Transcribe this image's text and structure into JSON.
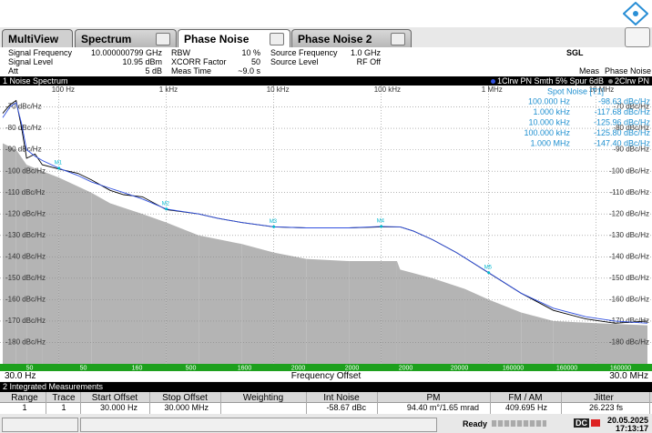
{
  "tabs": [
    "MultiView",
    "Spectrum",
    "Phase Noise",
    "Phase Noise 2"
  ],
  "info": {
    "signal_frequency": [
      "Signal Frequency",
      "10.000000799 GHz"
    ],
    "signal_level": [
      "Signal Level",
      "10.95 dBm"
    ],
    "att": [
      "Att",
      "5 dB"
    ],
    "rbw": [
      "RBW",
      "10 %"
    ],
    "xcorr": [
      "XCORR Factor",
      "50"
    ],
    "meas_time": [
      "Meas Time",
      "~9.0 s"
    ],
    "source_frequency": [
      "Source Frequency",
      "1.0 GHz"
    ],
    "source_level": [
      "Source Level",
      "RF Off"
    ],
    "mode": "SGL",
    "meas": [
      "Meas",
      "Phase Noise"
    ]
  },
  "plot": {
    "type": "line",
    "title": "1 Noise Spectrum",
    "trace_info": [
      "1Clrw PN Smth 5% Spur 6dB",
      "2Clrw PN"
    ],
    "log_x": true,
    "grid": true,
    "xlim": [
      30,
      30000000
    ],
    "ylim": [
      -190,
      -60
    ],
    "xticks": [
      {
        "value": 100,
        "label": "100 Hz"
      },
      {
        "value": 1000,
        "label": "1 kHz"
      },
      {
        "value": 10000,
        "label": "10 kHz"
      },
      {
        "value": 100000,
        "label": "100 kHz"
      },
      {
        "value": 1000000,
        "label": "1 MHz"
      },
      {
        "value": 10000000,
        "label": "10 MHz"
      }
    ],
    "yticks": [
      {
        "value": -70,
        "label": "-70 dBc/Hz"
      },
      {
        "value": -80,
        "label": "-80 dBc/Hz"
      },
      {
        "value": -90,
        "label": "-90 dBc/Hz"
      },
      {
        "value": -100,
        "label": "-100 dBc/Hz"
      },
      {
        "value": -110,
        "label": "-110 dBc/Hz"
      },
      {
        "value": -120,
        "label": "-120 dBc/Hz"
      },
      {
        "value": -130,
        "label": "-130 dBc/Hz"
      },
      {
        "value": -140,
        "label": "-140 dBc/Hz"
      },
      {
        "value": -150,
        "label": "-150 dBc/Hz"
      },
      {
        "value": -160,
        "label": "-160 dBc/Hz"
      },
      {
        "value": -170,
        "label": "-170 dBc/Hz"
      },
      {
        "value": -180,
        "label": "-180 dBc/Hz"
      }
    ],
    "x_start_label": "30.0 Hz",
    "x_label": "Frequency Offset",
    "x_end_label": "30.0 MHz",
    "area": {
      "color": "#b4b4b4",
      "x": [
        30,
        40,
        50,
        70,
        100,
        200,
        300,
        600,
        1000,
        2000,
        5000,
        10000,
        20000,
        50000,
        100000,
        140000,
        150000,
        300000,
        600000,
        1000000,
        2000000,
        4000000,
        10000000,
        30000000
      ],
      "values": [
        -87,
        -90,
        -97,
        -100,
        -103,
        -110,
        -115,
        -120,
        -124,
        -130,
        -134,
        -138,
        -141,
        -142,
        -142,
        -142,
        -146,
        -150,
        -155,
        -160,
        -166,
        -170,
        -171,
        -172
      ]
    },
    "series": [
      {
        "color": "#000000",
        "x": [
          30,
          35,
          40,
          45,
          50,
          60,
          70,
          100,
          150,
          200,
          300,
          400,
          600,
          1000,
          2000,
          3000,
          5000,
          10000,
          20000,
          50000,
          100000,
          150000,
          200000,
          300000,
          500000,
          1000000,
          2000000,
          4000000,
          8000000,
          15000000,
          30000000
        ],
        "values": [
          -73,
          -69,
          -67,
          -80,
          -94,
          -92,
          -97,
          -99,
          -101,
          -104,
          -109,
          -111,
          -112,
          -118,
          -120,
          -122,
          -124,
          -126,
          -126.5,
          -126.5,
          -126,
          -126,
          -128,
          -132,
          -138,
          -147.5,
          -157,
          -165,
          -169,
          -171,
          -170
        ]
      },
      {
        "color": "#3050e0",
        "x": [
          30,
          35,
          40,
          45,
          50,
          60,
          70,
          100,
          150,
          200,
          300,
          400,
          600,
          1000,
          2000,
          3000,
          5000,
          10000,
          20000,
          50000,
          100000,
          150000,
          200000,
          300000,
          500000,
          1000000,
          2000000,
          4000000,
          8000000,
          15000000,
          30000000
        ],
        "values": [
          -75,
          -70,
          -68,
          -78,
          -90,
          -93,
          -95,
          -98.63,
          -102,
          -105,
          -108,
          -110,
          -113,
          -117.68,
          -120,
          -122,
          -124,
          -125.96,
          -126.5,
          -126.5,
          -125.8,
          -126,
          -128,
          -132,
          -138,
          -147.4,
          -157,
          -164,
          -168,
          -170,
          -171
        ]
      }
    ],
    "markers": {
      "labels": [
        "M1",
        "M2",
        "M3",
        "M4",
        "M5"
      ],
      "x": [
        100,
        1000,
        10000,
        100000,
        1000000
      ],
      "values": [
        -98.63,
        -117.68,
        -125.96,
        -125.8,
        -147.4
      ]
    },
    "spot_noise": {
      "title": "Spot Noise [T1]",
      "rows": [
        [
          "100.000 Hz",
          "-98.63 dBc/Hz"
        ],
        [
          "1.000 kHz",
          "-117.68 dBc/Hz"
        ],
        [
          "10.000 kHz",
          "-125.96 dBc/Hz"
        ],
        [
          "100.000 kHz",
          "-125.80 dBc/Hz"
        ],
        [
          "1.000 MHz",
          "-147.40 dBc/Hz"
        ]
      ]
    },
    "avg_bar": [
      50,
      50,
      160,
      500,
      1600,
      2000,
      2000,
      2000,
      20000,
      160000,
      160000,
      160000
    ]
  },
  "integrated": {
    "title": "2 Integrated Measurements",
    "headers": [
      "Range",
      "Trace",
      "Start Offset",
      "Stop Offset",
      "Weighting",
      "Int Noise",
      "PM",
      "FM / AM",
      "Jitter"
    ],
    "rows": [
      [
        "1",
        "1",
        "30.000 Hz",
        "30.000 MHz",
        null,
        "-58.67 dBc",
        "94.40 m°/1.65 mrad",
        "409.695 Hz",
        "26.223 fs"
      ]
    ]
  },
  "status": {
    "state": "Ready",
    "dc": "DC",
    "date": "20.05.2025",
    "time": "17:13:17"
  }
}
